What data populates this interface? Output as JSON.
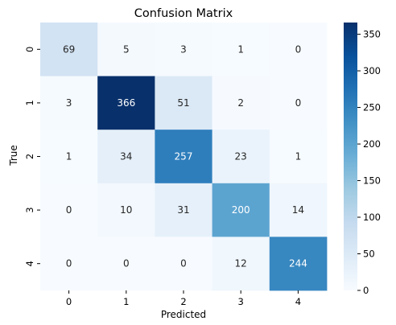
{
  "chart_data": {
    "type": "heatmap",
    "title": "Confusion Matrix",
    "xlabel": "Predicted",
    "ylabel": "True",
    "x_categories": [
      "0",
      "1",
      "2",
      "3",
      "4"
    ],
    "y_categories": [
      "0",
      "1",
      "2",
      "3",
      "4"
    ],
    "values": [
      [
        69,
        5,
        3,
        1,
        0
      ],
      [
        3,
        366,
        51,
        2,
        0
      ],
      [
        1,
        34,
        257,
        23,
        1
      ],
      [
        0,
        10,
        31,
        200,
        14
      ],
      [
        0,
        0,
        0,
        12,
        244
      ]
    ],
    "colorbar": {
      "colormap": "Blues",
      "range": [
        0,
        366
      ],
      "ticks": [
        0,
        50,
        100,
        150,
        200,
        250,
        300,
        350
      ]
    }
  }
}
